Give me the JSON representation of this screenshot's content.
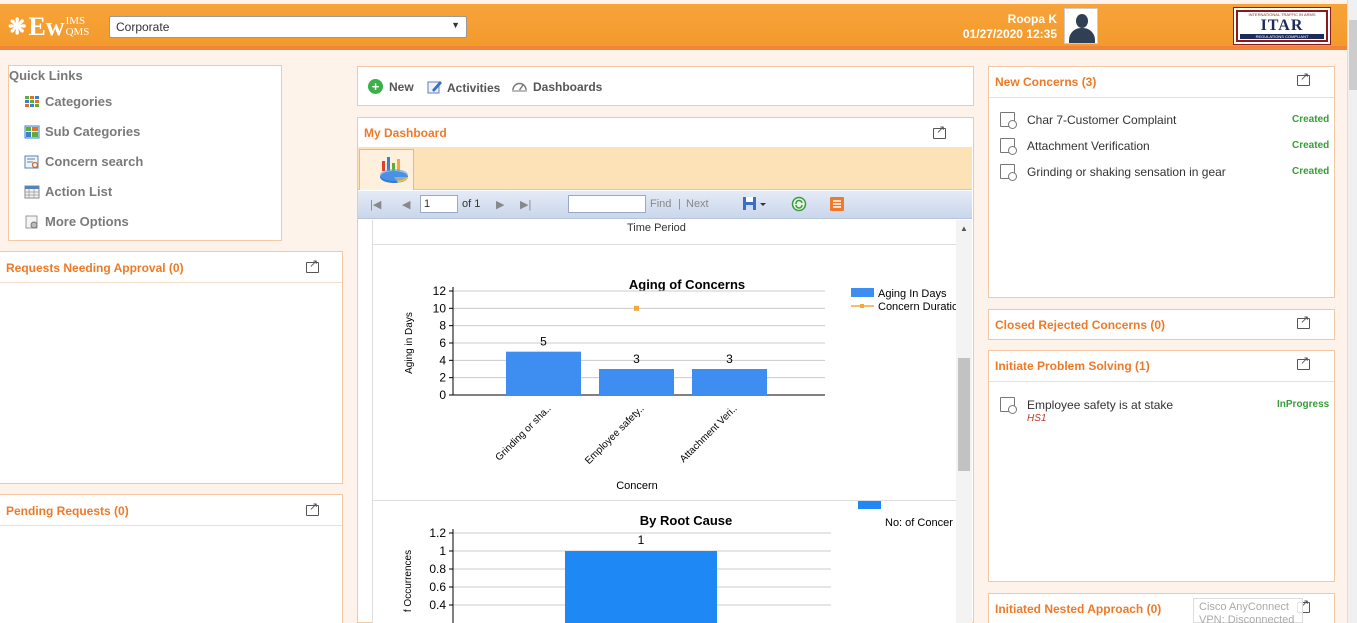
{
  "header": {
    "logo_main": "Ew",
    "logo_sup_top": "IMS",
    "logo_sup_bottom": "QMS",
    "org_select_value": "Corporate",
    "user_name": "Roopa K",
    "datetime": "01/27/2020 12:35",
    "itar_main": "ITAR",
    "itar_top": "INTERNATIONAL TRAFFIC IN ARMS",
    "itar_bottom": "REGULATIONS COMPLIANT"
  },
  "quick_links": {
    "title": "Quick Links",
    "items": [
      {
        "label": "Categories",
        "icon": "grid-icon"
      },
      {
        "label": "Sub Categories",
        "icon": "subgrid-icon"
      },
      {
        "label": "Concern search",
        "icon": "search-doc-icon"
      },
      {
        "label": "Action List",
        "icon": "calendar-icon"
      },
      {
        "label": "More Options",
        "icon": "gear-doc-icon"
      }
    ]
  },
  "requests_panel": {
    "title": "Requests Needing Approval (0)"
  },
  "pending_panel": {
    "title": "Pending Requests (0)"
  },
  "toolbar": {
    "new": "New",
    "activities": "Activities",
    "dashboards": "Dashboards"
  },
  "dashboard": {
    "title": "My Dashboard",
    "report_toolbar": {
      "page": "1",
      "of": "of 1",
      "find_value": "",
      "find": "Find",
      "next": "Next"
    },
    "prev_axis_label": "Time Period"
  },
  "chart_data": [
    {
      "type": "bar",
      "title": "Aging of Concerns",
      "xlabel": "Concern",
      "ylabel": "Aging in Days",
      "categories": [
        "Grinding or sha..",
        "Employee safety..",
        "Attachment Veri.."
      ],
      "series": [
        {
          "name": "Aging In Days",
          "values": [
            5,
            3,
            3
          ],
          "color": "#3d8ef0"
        },
        {
          "name": "Concern Duratio",
          "values": [
            null,
            10,
            null
          ],
          "color": "#f3a93a"
        }
      ],
      "ylim": [
        0,
        12
      ],
      "yticks": [
        "0",
        "2",
        "4",
        "6",
        "8",
        "10",
        "12"
      ],
      "grid": true,
      "legend": "top-right"
    },
    {
      "type": "bar",
      "title": "By Root Cause",
      "ylabel": "f Occurrences",
      "series": [
        {
          "name": "No: of Concer",
          "values": [
            1
          ],
          "color": "#1e88f5"
        }
      ],
      "yticks": [
        "0.4",
        "0.6",
        "0.8",
        "1",
        "1.2"
      ],
      "ylim": [
        0,
        1.2
      ],
      "legend": "top-right"
    }
  ],
  "new_concerns": {
    "title": "New Concerns (3)",
    "items": [
      {
        "label": "Char 7-Customer Complaint",
        "status": "Created"
      },
      {
        "label": "Attachment Verification",
        "status": "Created"
      },
      {
        "label": "Grinding or shaking sensation in gear",
        "status": "Created"
      }
    ]
  },
  "closed_panel": {
    "title": "Closed Rejected Concerns (0)"
  },
  "initiate_panel": {
    "title": "Initiate Problem Solving (1)",
    "items": [
      {
        "label": "Employee safety is at stake",
        "sub": "HS1",
        "status": "InProgress"
      }
    ]
  },
  "nested_panel": {
    "title": "Initiated Nested Approach (0)"
  },
  "vpn_notice": {
    "line1": "Cisco AnyConnect",
    "line2": "VPN: Disconnected"
  },
  "colors": {
    "accent": "#ee7a28",
    "header": "#f7a33a",
    "created": "#3a9b3a"
  }
}
